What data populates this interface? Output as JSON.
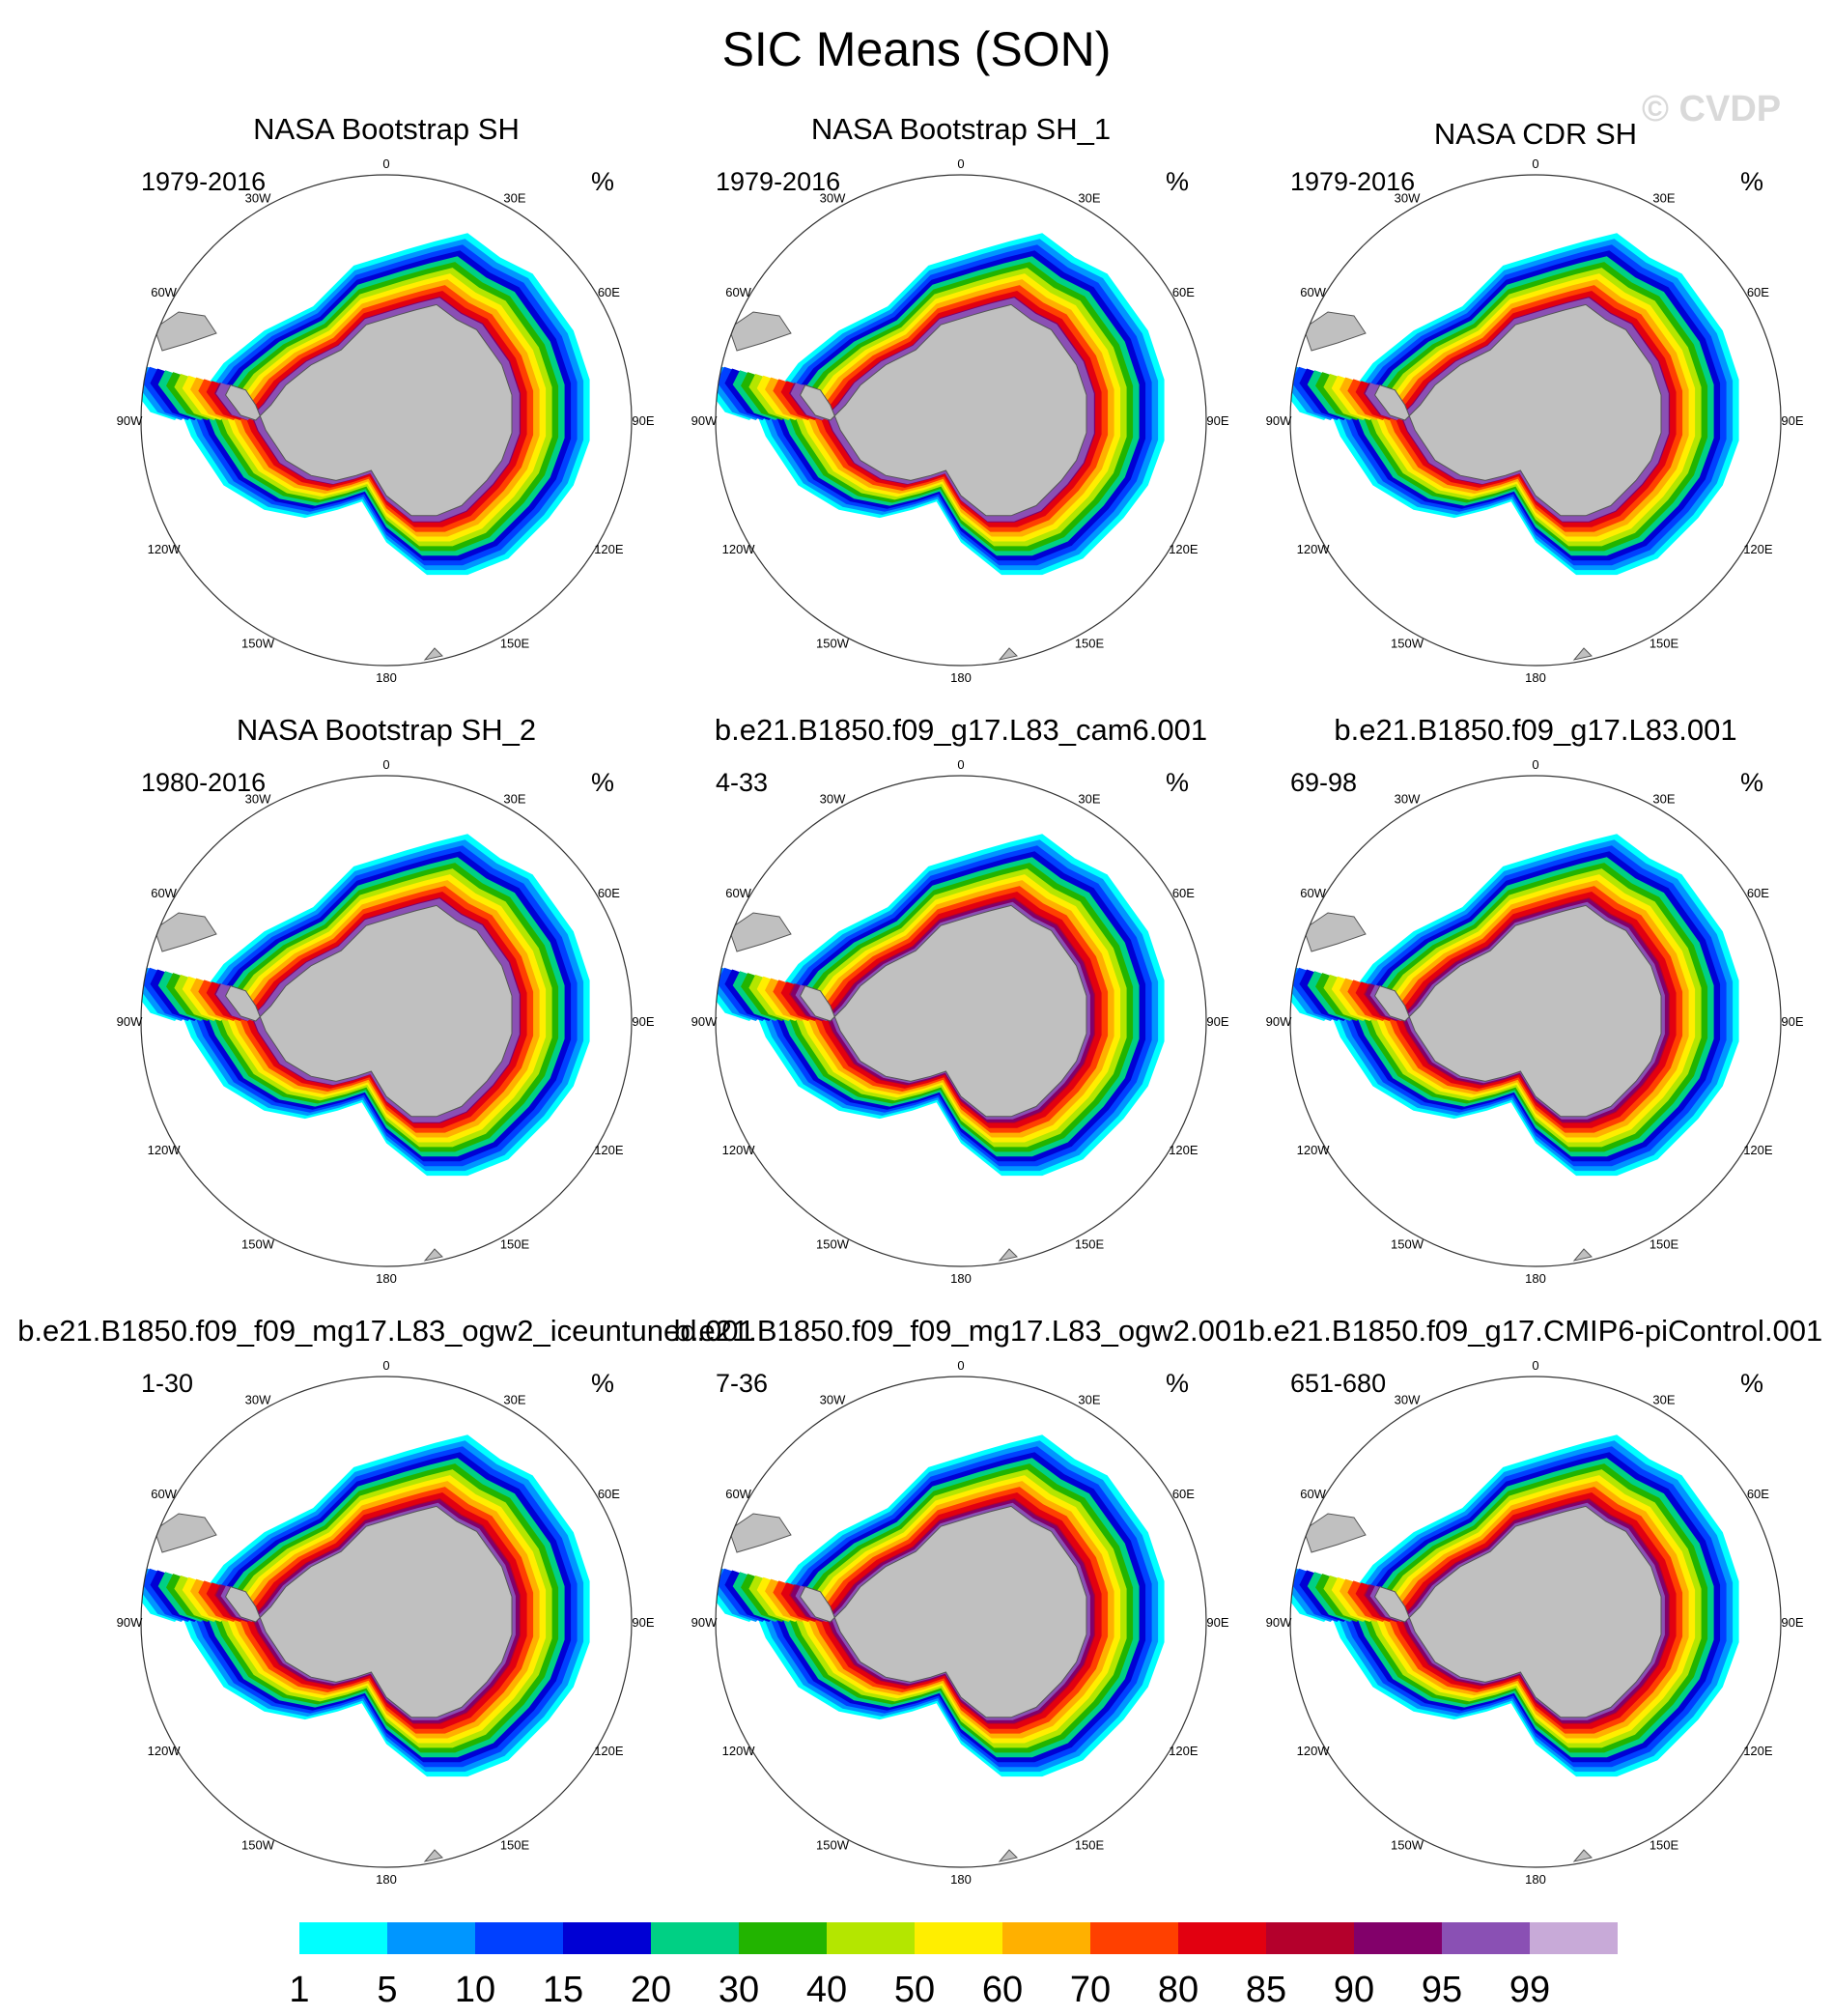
{
  "title": "SIC Means (SON)",
  "watermark": "© CVDP",
  "units": "%",
  "chart_data": {
    "type": "heatmap",
    "projection": "south polar stereographic",
    "variable": "SIC",
    "season": "SON",
    "longitude_labels": [
      "0",
      "30E",
      "60E",
      "90E",
      "120E",
      "150E",
      "180",
      "150W",
      "120W",
      "90W",
      "60W",
      "30W"
    ],
    "panels": [
      {
        "title": "NASA Bootstrap SH",
        "period": "1979-2016",
        "units": "%",
        "style": "obs"
      },
      {
        "title": "NASA Bootstrap SH_1",
        "period": "1979-2016",
        "units": "%",
        "style": "obs"
      },
      {
        "title": "NASA CDR SH",
        "period": "1979-2016",
        "units": "%",
        "style": "obs"
      },
      {
        "title": "NASA Bootstrap SH_2",
        "period": "1980-2016",
        "units": "%",
        "style": "obs"
      },
      {
        "title": "b.e21.B1850.f09_g17.L83_cam6.001",
        "period": "4-33",
        "units": "%",
        "style": "model"
      },
      {
        "title": "b.e21.B1850.f09_g17.L83.001",
        "period": "69-98",
        "units": "%",
        "style": "model"
      },
      {
        "title": "b.e21.B1850.f09_f09_mg17.L83_ogw2_iceuntuned.001",
        "period": "1-30",
        "units": "%",
        "style": "model"
      },
      {
        "title": "b.e21.B1850.f09_f09_mg17.L83_ogw2.001",
        "period": "7-36",
        "units": "%",
        "style": "model"
      },
      {
        "title": "b.e21.B1850.f09_g17.CMIP6-piControl.001",
        "period": "651-680",
        "units": "%",
        "style": "model"
      }
    ],
    "colorbar": {
      "levels": [
        1,
        5,
        10,
        15,
        20,
        30,
        40,
        50,
        60,
        70,
        80,
        85,
        90,
        95,
        99
      ],
      "colors": [
        "#00ffff",
        "#0096ff",
        "#0040ff",
        "#0000d4",
        "#00d084",
        "#22b400",
        "#b4e600",
        "#ffee00",
        "#ffb000",
        "#ff4000",
        "#e20010",
        "#b4002c",
        "#82006a",
        "#8a50b4",
        "#c8aad8"
      ]
    },
    "land_color": "#c0c0c0"
  }
}
